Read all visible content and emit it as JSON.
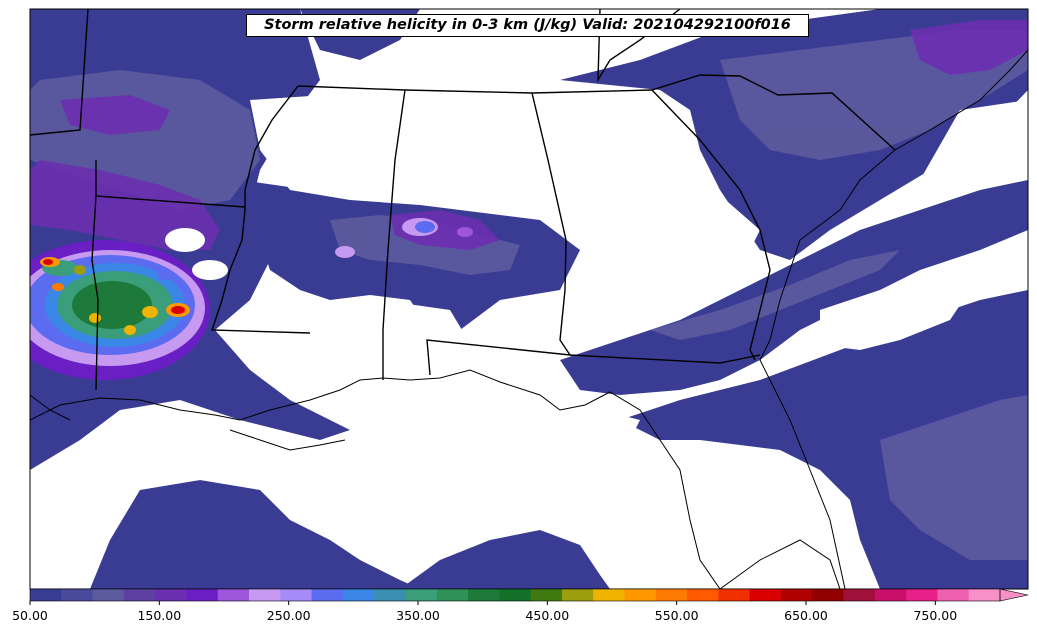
{
  "title": "Storm relative helicity in 0-3 km (J/kg) Valid: 202104292100f016",
  "colorbar": {
    "tick_labels": [
      "50.00",
      "150.00",
      "250.00",
      "350.00",
      "450.00",
      "550.00",
      "650.00",
      "750.00"
    ],
    "min": 50,
    "max": 800,
    "step": 25,
    "extend": "max",
    "colors": [
      "#3a3c93",
      "#4a4a9c",
      "#5b5a9e",
      "#5e3fa2",
      "#6b2fb0",
      "#6a1fc4",
      "#9c57dc",
      "#c79af2",
      "#a58bf7",
      "#5b6cf0",
      "#3a87e8",
      "#3a8fb0",
      "#3a9e7a",
      "#2f9158",
      "#1e7a3a",
      "#127028",
      "#3f7a10",
      "#9c9e10",
      "#f0b400",
      "#ff9800",
      "#ff7a00",
      "#ff5a00",
      "#f03000",
      "#d80000",
      "#b00000",
      "#900000",
      "#a0103a",
      "#c8106a",
      "#e8208a",
      "#f060b0",
      "#f890c8"
    ]
  },
  "map": {
    "region": "Southeastern United States",
    "projection_note": "Lambert conformal style regional view"
  }
}
